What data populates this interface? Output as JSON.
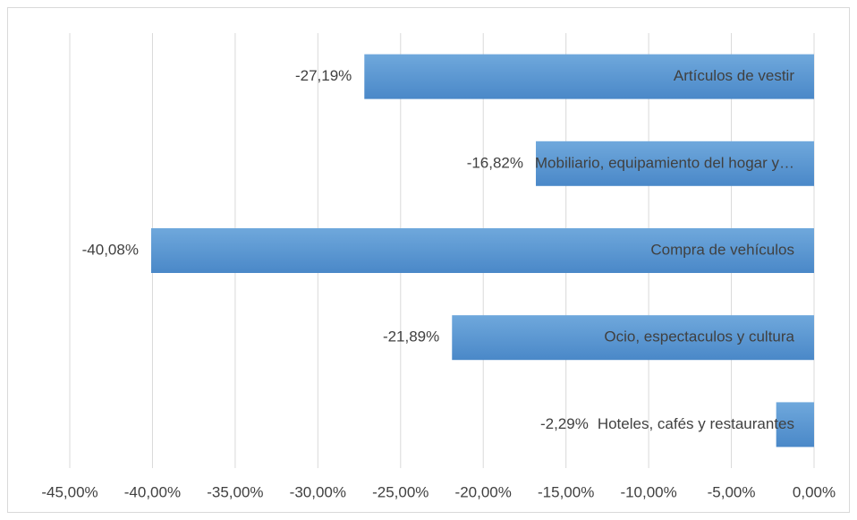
{
  "chart_data": {
    "type": "bar",
    "orientation": "horizontal",
    "categories": [
      "Artículos de vestir",
      "Mobiliario, equipamiento del hogar y…",
      "Compra de vehículos",
      "Ocio, espectaculos y cultura",
      "Hoteles, cafés y restaurantes"
    ],
    "values": [
      -27.19,
      -16.82,
      -40.08,
      -21.89,
      -2.29
    ],
    "value_labels": [
      "-27,19%",
      "-16,82%",
      "-40,08%",
      "-21,89%",
      "-2,29%"
    ],
    "color": "#5b9bd5",
    "xlim": [
      -45,
      0
    ],
    "xticks": [
      {
        "value": -45,
        "label": "-45,00%"
      },
      {
        "value": -40,
        "label": "-40,00%"
      },
      {
        "value": -35,
        "label": "-35,00%"
      },
      {
        "value": -30,
        "label": "-30,00%"
      },
      {
        "value": -25,
        "label": "-25,00%"
      },
      {
        "value": -20,
        "label": "-20,00%"
      },
      {
        "value": -15,
        "label": "-15,00%"
      },
      {
        "value": -10,
        "label": "-10,00%"
      },
      {
        "value": -5,
        "label": "-5,00%"
      },
      {
        "value": 0,
        "label": "0,00%"
      }
    ],
    "grid": true
  }
}
